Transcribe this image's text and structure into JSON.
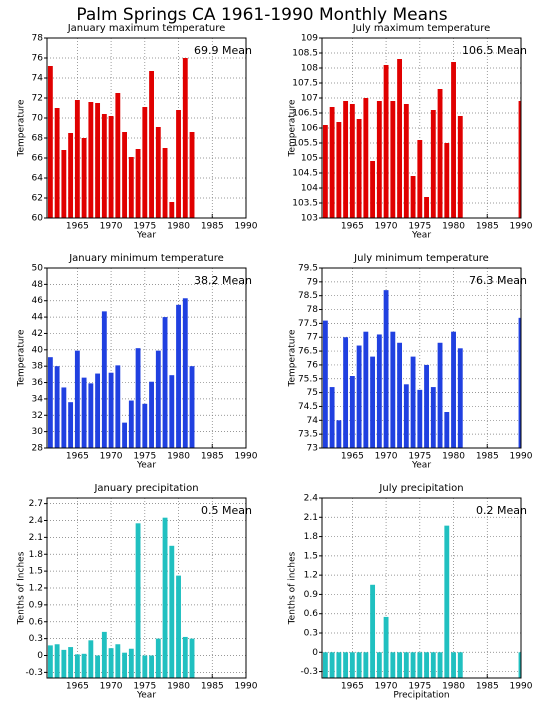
{
  "title": "Palm Springs CA  1961-1990 Monthly Means",
  "chart_data": [
    {
      "type": "bar",
      "title": "January maximum temperature",
      "xlabel": "Year",
      "ylabel": "Temperature",
      "annotation": "69.9 Mean",
      "color": "#e00000",
      "x": [
        1961,
        1962,
        1963,
        1964,
        1965,
        1966,
        1967,
        1968,
        1969,
        1970,
        1971,
        1972,
        1973,
        1974,
        1975,
        1976,
        1977,
        1978,
        1979,
        1980,
        1981,
        1982,
        1983,
        1984,
        1985,
        1986,
        1987,
        1988,
        1989,
        1990
      ],
      "values": [
        75.2,
        71.0,
        66.8,
        68.5,
        71.8,
        68.0,
        71.6,
        71.5,
        70.4,
        70.2,
        72.5,
        68.6,
        66.1,
        66.9,
        71.1,
        74.7,
        69.1,
        67.0,
        61.6,
        70.8,
        76.0,
        68.6,
        null,
        null,
        null,
        null,
        null,
        null,
        null,
        null
      ],
      "xlim": [
        1960.5,
        1990
      ],
      "xticks": [
        1965,
        1970,
        1975,
        1980,
        1985,
        1990
      ],
      "ylim": [
        60,
        78
      ],
      "yticks": [
        60,
        62,
        64,
        66,
        68,
        70,
        72,
        74,
        76,
        78
      ],
      "grid": true
    },
    {
      "type": "bar",
      "title": "July maximum temperature",
      "xlabel": "Year",
      "ylabel": "Temperature",
      "annotation": "106.5 Mean",
      "color": "#e00000",
      "x": [
        1961,
        1962,
        1963,
        1964,
        1965,
        1966,
        1967,
        1968,
        1969,
        1970,
        1971,
        1972,
        1973,
        1974,
        1975,
        1976,
        1977,
        1978,
        1979,
        1980,
        1981,
        1982,
        1983,
        1984,
        1985,
        1986,
        1987,
        1988,
        1989,
        1990
      ],
      "values": [
        106.1,
        106.7,
        106.2,
        106.9,
        106.8,
        106.3,
        107.0,
        104.9,
        106.9,
        108.1,
        106.9,
        108.3,
        106.8,
        104.4,
        105.6,
        103.7,
        106.6,
        107.3,
        105.5,
        108.2,
        106.4,
        null,
        null,
        null,
        null,
        null,
        null,
        null,
        null,
        106.9
      ],
      "xlim": [
        1960.5,
        1990
      ],
      "xticks": [
        1965,
        1970,
        1975,
        1980,
        1985,
        1990
      ],
      "ylim": [
        103,
        109
      ],
      "yticks": [
        103,
        103.5,
        104,
        104.5,
        105,
        105.5,
        106,
        106.5,
        107,
        107.5,
        108,
        108.5,
        109
      ],
      "grid": true
    },
    {
      "type": "bar",
      "title": "January minimum temperature",
      "xlabel": "Year",
      "ylabel": "Temperature",
      "annotation": "38.2 Mean",
      "color": "#2040e0",
      "x": [
        1961,
        1962,
        1963,
        1964,
        1965,
        1966,
        1967,
        1968,
        1969,
        1970,
        1971,
        1972,
        1973,
        1974,
        1975,
        1976,
        1977,
        1978,
        1979,
        1980,
        1981,
        1982,
        1983,
        1984,
        1985,
        1986,
        1987,
        1988,
        1989,
        1990
      ],
      "values": [
        39.1,
        38.0,
        35.4,
        33.6,
        39.9,
        36.6,
        35.9,
        37.1,
        44.7,
        37.2,
        38.1,
        31.1,
        33.8,
        40.2,
        33.4,
        36.1,
        39.9,
        44.0,
        36.9,
        45.5,
        46.3,
        38.0,
        null,
        null,
        null,
        null,
        null,
        null,
        null,
        null
      ],
      "xlim": [
        1960.5,
        1990
      ],
      "xticks": [
        1965,
        1970,
        1975,
        1980,
        1985,
        1990
      ],
      "ylim": [
        28,
        50
      ],
      "yticks": [
        28,
        30,
        32,
        34,
        36,
        38,
        40,
        42,
        44,
        46,
        48,
        50
      ],
      "grid": true
    },
    {
      "type": "bar",
      "title": "July minimum temperature",
      "xlabel": "Year",
      "ylabel": "Temperature",
      "annotation": "76.3 Mean",
      "color": "#2040e0",
      "x": [
        1961,
        1962,
        1963,
        1964,
        1965,
        1966,
        1967,
        1968,
        1969,
        1970,
        1971,
        1972,
        1973,
        1974,
        1975,
        1976,
        1977,
        1978,
        1979,
        1980,
        1981,
        1982,
        1983,
        1984,
        1985,
        1986,
        1987,
        1988,
        1989,
        1990
      ],
      "values": [
        77.6,
        75.2,
        74.0,
        77.0,
        75.6,
        76.7,
        77.2,
        76.3,
        77.1,
        78.7,
        77.2,
        76.8,
        75.3,
        76.3,
        75.1,
        76.0,
        75.2,
        76.8,
        74.3,
        77.2,
        76.6,
        null,
        null,
        null,
        null,
        null,
        null,
        null,
        null,
        77.7
      ],
      "xlim": [
        1960.5,
        1990
      ],
      "xticks": [
        1965,
        1970,
        1975,
        1980,
        1985,
        1990
      ],
      "ylim": [
        73,
        79.5
      ],
      "yticks": [
        73,
        73.5,
        74,
        74.5,
        75,
        75.5,
        76,
        76.5,
        77,
        77.5,
        78,
        78.5,
        79,
        79.5
      ],
      "grid": true
    },
    {
      "type": "bar",
      "title": "January precipitation",
      "xlabel": "Year",
      "ylabel": "Tenths of Inches",
      "annotation": "0.5 Mean",
      "color": "#20c0c0",
      "x": [
        1961,
        1962,
        1963,
        1964,
        1965,
        1966,
        1967,
        1968,
        1969,
        1970,
        1971,
        1972,
        1973,
        1974,
        1975,
        1976,
        1977,
        1978,
        1979,
        1980,
        1981,
        1982,
        1983,
        1984,
        1985,
        1986,
        1987,
        1988,
        1989,
        1990
      ],
      "values": [
        0.18,
        0.2,
        0.1,
        0.15,
        0.02,
        0.03,
        0.27,
        0.0,
        0.42,
        0.13,
        0.2,
        0.05,
        0.12,
        2.35,
        0.0,
        0.0,
        0.3,
        2.45,
        1.95,
        1.42,
        0.33,
        0.3,
        null,
        null,
        null,
        null,
        null,
        null,
        null,
        null
      ],
      "xlim": [
        1960.5,
        1990
      ],
      "xticks": [
        1965,
        1970,
        1975,
        1980,
        1985,
        1990
      ],
      "ylim": [
        -0.4,
        2.8
      ],
      "yticks": [
        -0.3,
        0,
        0.3,
        0.6,
        0.9,
        1.2,
        1.5,
        1.8,
        2.1,
        2.4,
        2.7
      ],
      "grid": true
    },
    {
      "type": "bar",
      "title": "July precipitation",
      "xlabel": "Precipitation",
      "ylabel": "Tenths of inches",
      "annotation": "0.2 Mean",
      "color": "#20c0c0",
      "x": [
        1961,
        1962,
        1963,
        1964,
        1965,
        1966,
        1967,
        1968,
        1969,
        1970,
        1971,
        1972,
        1973,
        1974,
        1975,
        1976,
        1977,
        1978,
        1979,
        1980,
        1981,
        1982,
        1983,
        1984,
        1985,
        1986,
        1987,
        1988,
        1989,
        1990
      ],
      "values": [
        0,
        0,
        0,
        0,
        0,
        0,
        0,
        1.05,
        0,
        0.55,
        0,
        0,
        0,
        0,
        0,
        0,
        0,
        0,
        1.97,
        0,
        0,
        null,
        null,
        null,
        null,
        null,
        null,
        null,
        null,
        0
      ],
      "xlim": [
        1960.5,
        1990
      ],
      "xticks": [
        1965,
        1970,
        1975,
        1980,
        1985,
        1990
      ],
      "ylim": [
        -0.4,
        2.4
      ],
      "yticks": [
        -0.3,
        0,
        0.3,
        0.6,
        0.9,
        1.2,
        1.5,
        1.8,
        2.1,
        2.4
      ],
      "grid": true
    }
  ]
}
